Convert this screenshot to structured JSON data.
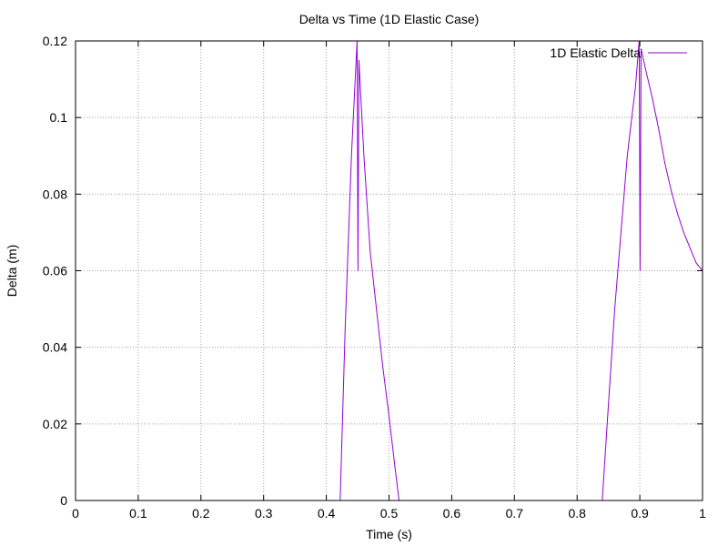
{
  "chart_data": {
    "type": "line",
    "title": "Delta vs Time (1D Elastic Case)",
    "xlabel": "Time (s)",
    "ylabel": "Delta (m)",
    "xlim": [
      0,
      1
    ],
    "ylim": [
      0,
      0.12
    ],
    "grid": true,
    "legend_position": "top-right",
    "xticks": [
      0,
      0.1,
      0.2,
      0.3,
      0.4,
      0.5,
      0.6,
      0.7,
      0.8,
      0.9,
      1
    ],
    "xtick_labels": [
      "0",
      "0.1",
      "0.2",
      "0.3",
      "0.4",
      "0.5",
      "0.6",
      "0.7",
      "0.8",
      "0.9",
      "1"
    ],
    "yticks": [
      0,
      0.02,
      0.04,
      0.06,
      0.08,
      0.1,
      0.12
    ],
    "ytick_labels": [
      "0",
      "0.02",
      "0.04",
      "0.06",
      "0.08",
      "0.1",
      "0.12"
    ],
    "series": [
      {
        "name": "1D Elastic Delta",
        "color": "#9400d3",
        "points": [
          [
            0.0,
            0.0
          ],
          [
            0.422,
            0.0
          ],
          [
            0.43,
            0.045
          ],
          [
            0.44,
            0.09
          ],
          [
            0.449,
            0.12
          ],
          [
            0.4505,
            0.06
          ],
          [
            0.452,
            0.115
          ],
          [
            0.46,
            0.09
          ],
          [
            0.47,
            0.065
          ],
          [
            0.48,
            0.05
          ],
          [
            0.49,
            0.035
          ],
          [
            0.5,
            0.022
          ],
          [
            0.51,
            0.008
          ],
          [
            0.516,
            0.0
          ],
          [
            0.84,
            0.0
          ],
          [
            0.85,
            0.025
          ],
          [
            0.86,
            0.05
          ],
          [
            0.87,
            0.07
          ],
          [
            0.88,
            0.09
          ],
          [
            0.893,
            0.108
          ],
          [
            0.899,
            0.12
          ],
          [
            0.9005,
            0.06
          ],
          [
            0.902,
            0.118
          ],
          [
            0.91,
            0.112
          ],
          [
            0.92,
            0.105
          ],
          [
            0.93,
            0.097
          ],
          [
            0.94,
            0.088
          ],
          [
            0.95,
            0.081
          ],
          [
            0.96,
            0.075
          ],
          [
            0.97,
            0.07
          ],
          [
            0.98,
            0.066
          ],
          [
            0.99,
            0.062
          ],
          [
            1.0,
            0.06
          ]
        ]
      }
    ]
  }
}
